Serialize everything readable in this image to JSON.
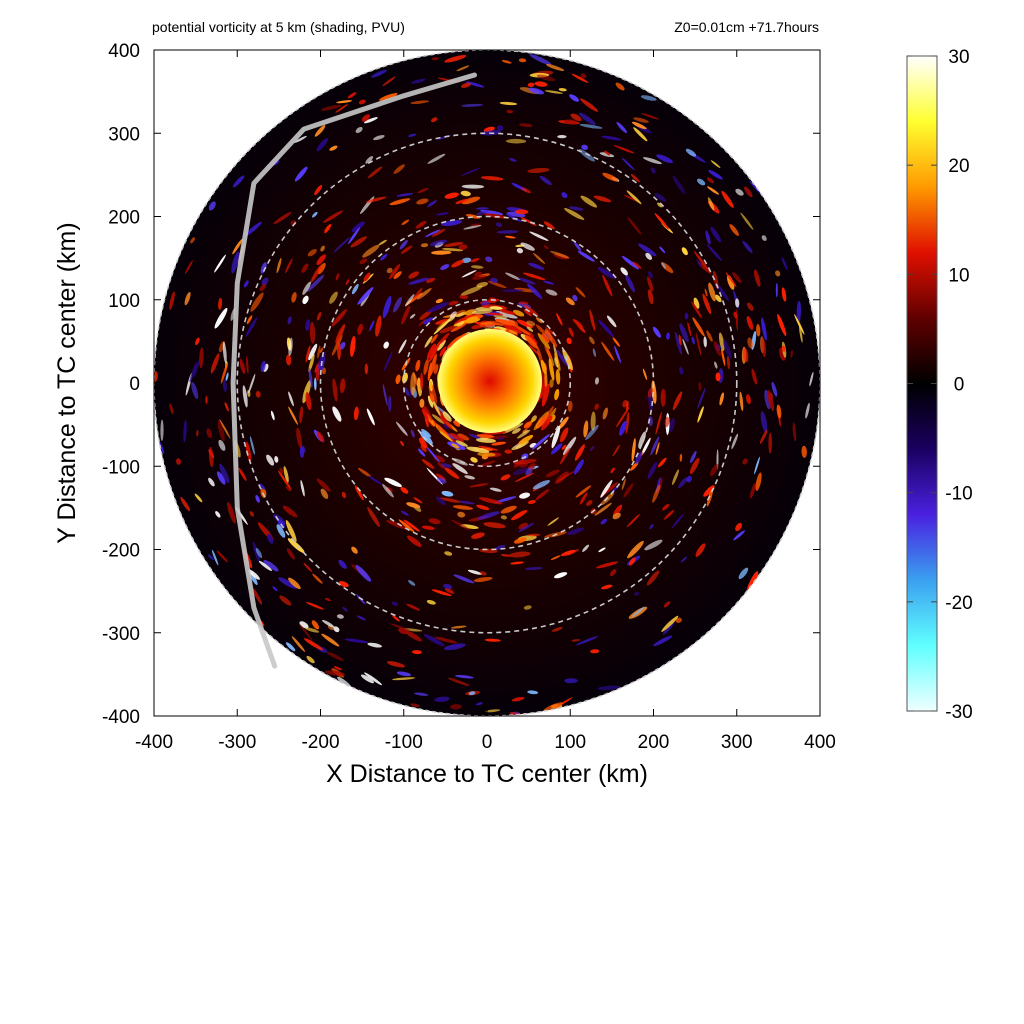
{
  "chart_data": {
    "type": "heatmap",
    "title": "potential vorticity at 5 km (shading, PVU)",
    "subtitle": "Z0=0.01cm  +71.7hours",
    "xlabel": "X Distance to TC center (km)",
    "ylabel": "Y Distance to TC center (km)",
    "xlim": [
      -400,
      400
    ],
    "ylim": [
      -400,
      400
    ],
    "x_ticks": [
      -400,
      -300,
      -200,
      -100,
      0,
      100,
      200,
      300,
      400
    ],
    "y_ticks": [
      -400,
      -300,
      -200,
      -100,
      0,
      100,
      200,
      300,
      400
    ],
    "domain_radius_km": 400,
    "range_rings_km": [
      100,
      200,
      300
    ],
    "colorbar": {
      "min": -30,
      "max": 30,
      "ticks": [
        30,
        20,
        10,
        0,
        -10,
        -20,
        -30
      ],
      "colors": [
        "#ffffff",
        "#ffff30",
        "#ff9a00",
        "#e01000",
        "#600000",
        "#000000",
        "#1a0060",
        "#4a20e0",
        "#3aa0f0",
        "#60ffff",
        "#f0ffff"
      ]
    },
    "core_pv_range": "≥ 30",
    "storm_track": [
      [
        -15,
        370
      ],
      [
        -100,
        345
      ],
      [
        -220,
        305
      ],
      [
        -280,
        240
      ],
      [
        -300,
        120
      ],
      [
        -305,
        0
      ],
      [
        -300,
        -150
      ],
      [
        -280,
        -270
      ],
      [
        -255,
        -340
      ]
    ]
  }
}
